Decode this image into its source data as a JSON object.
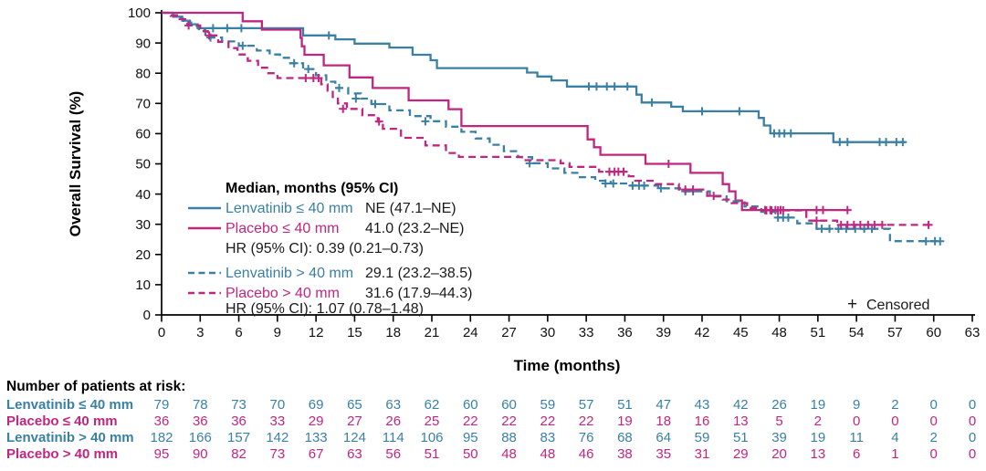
{
  "figure": {
    "censored_marker": "+",
    "censored_label": "Censored"
  },
  "chart_data": {
    "type": "line",
    "subtype": "kaplan-meier-step-survival",
    "title": "",
    "xlabel": "Time (months)",
    "ylabel": "Overall Survival (%)",
    "xlim": [
      0,
      63
    ],
    "ylim": [
      0,
      100
    ],
    "grid": false,
    "legend_position": "inside-left-bottom",
    "xticks": [
      0,
      3,
      6,
      9,
      12,
      15,
      18,
      21,
      24,
      27,
      30,
      33,
      36,
      39,
      42,
      45,
      48,
      51,
      54,
      57,
      60,
      63
    ],
    "yticks": [
      0,
      10,
      20,
      30,
      40,
      50,
      60,
      70,
      80,
      90,
      100
    ],
    "risk_table_title": "Number of patients at risk:",
    "legend": {
      "title": "Median, months (95% CI)",
      "hr_le40": "HR (95% CI): 0.39 (0.21–0.73)",
      "hr_gt40": "HR (95% CI): 1.07 (0.78–1.48)"
    },
    "series": [
      {
        "name": "Lenvatinib ≤ 40 mm",
        "color": "#3A80A5",
        "dash": "solid",
        "median": "NE (47.1–NE)",
        "points": [
          [
            0,
            100
          ],
          [
            0.9,
            98.7
          ],
          [
            1.6,
            97.4
          ],
          [
            2.2,
            96.2
          ],
          [
            2.8,
            94.9
          ],
          [
            11.0,
            92.5
          ],
          [
            13.5,
            91.2
          ],
          [
            15.0,
            89.8
          ],
          [
            17.7,
            88.5
          ],
          [
            19.5,
            86.1
          ],
          [
            20.9,
            84.3
          ],
          [
            21.4,
            81.7
          ],
          [
            28.4,
            80.2
          ],
          [
            29.2,
            78.9
          ],
          [
            30.3,
            77.6
          ],
          [
            31.5,
            75.6
          ],
          [
            36.9,
            72.9
          ],
          [
            37.3,
            70.3
          ],
          [
            39.6,
            68.9
          ],
          [
            40.5,
            67.4
          ],
          [
            46.4,
            65.2
          ],
          [
            46.8,
            62.7
          ],
          [
            47.3,
            60.1
          ],
          [
            52.2,
            57.2
          ],
          [
            57.8,
            57.2
          ]
        ],
        "censors": [
          [
            4.0,
            94.9
          ],
          [
            5.1,
            94.9
          ],
          [
            6.2,
            94.9
          ],
          [
            13.0,
            92.5
          ],
          [
            33.2,
            75.6
          ],
          [
            33.8,
            75.6
          ],
          [
            34.6,
            75.6
          ],
          [
            35.2,
            75.6
          ],
          [
            36.2,
            75.6
          ],
          [
            38.1,
            70.3
          ],
          [
            42.0,
            67.4
          ],
          [
            44.9,
            67.4
          ],
          [
            47.6,
            60.1
          ],
          [
            48.0,
            60.1
          ],
          [
            48.4,
            60.1
          ],
          [
            48.9,
            60.1
          ],
          [
            52.7,
            57.2
          ],
          [
            53.3,
            57.2
          ],
          [
            55.8,
            57.2
          ],
          [
            56.3,
            57.2
          ],
          [
            57.1,
            57.2
          ],
          [
            57.6,
            57.2
          ]
        ],
        "at_risk": [
          79,
          78,
          73,
          70,
          69,
          65,
          63,
          62,
          60,
          60,
          59,
          57,
          51,
          47,
          43,
          42,
          26,
          19,
          9,
          2,
          0,
          0
        ]
      },
      {
        "name": "Placebo ≤ 40 mm",
        "color": "#C0267F",
        "dash": "solid",
        "median": "41.0 (23.2–NE)",
        "points": [
          [
            0,
            100
          ],
          [
            6.3,
            97.2
          ],
          [
            7.8,
            94.4
          ],
          [
            10.8,
            91.7
          ],
          [
            10.9,
            88.9
          ],
          [
            11.1,
            86.1
          ],
          [
            12.6,
            82.6
          ],
          [
            14.6,
            78.6
          ],
          [
            16.4,
            75.1
          ],
          [
            19.2,
            71.0
          ],
          [
            22.3,
            68.1
          ],
          [
            23.3,
            62.5
          ],
          [
            33.1,
            58.1
          ],
          [
            33.6,
            55.5
          ],
          [
            34.1,
            53.0
          ],
          [
            37.6,
            50.0
          ],
          [
            41.1,
            47.0
          ],
          [
            43.6,
            43.3
          ],
          [
            44.1,
            40.9
          ],
          [
            44.6,
            37.9
          ],
          [
            45.1,
            34.7
          ],
          [
            53.4,
            34.7
          ]
        ],
        "censors": [
          [
            39.4,
            50.0
          ],
          [
            46.9,
            34.7
          ],
          [
            47.3,
            34.7
          ],
          [
            47.7,
            34.7
          ],
          [
            48.1,
            34.7
          ],
          [
            50.9,
            34.7
          ],
          [
            51.4,
            34.7
          ],
          [
            53.3,
            34.7
          ]
        ],
        "at_risk": [
          36,
          36,
          36,
          33,
          29,
          27,
          26,
          25,
          22,
          22,
          22,
          22,
          19,
          18,
          16,
          13,
          5,
          2,
          0,
          0,
          0,
          0
        ]
      },
      {
        "name": "Lenvatinib > 40 mm",
        "color": "#3A80A5",
        "dash": "dashed",
        "median": "29.1 (23.2–38.5)",
        "points": [
          [
            0,
            100
          ],
          [
            0.6,
            99.2
          ],
          [
            1.2,
            98.0
          ],
          [
            1.7,
            96.8
          ],
          [
            2.3,
            95.6
          ],
          [
            2.9,
            94.2
          ],
          [
            3.4,
            91.8
          ],
          [
            4.7,
            90.5
          ],
          [
            6.0,
            89.1
          ],
          [
            7.4,
            87.5
          ],
          [
            8.4,
            86.2
          ],
          [
            9.2,
            85.1
          ],
          [
            9.9,
            83.3
          ],
          [
            11.0,
            81.4
          ],
          [
            12.0,
            79.3
          ],
          [
            12.8,
            77.2
          ],
          [
            13.5,
            75.1
          ],
          [
            14.5,
            73.3
          ],
          [
            15.5,
            71.6
          ],
          [
            16.3,
            69.8
          ],
          [
            17.7,
            67.7
          ],
          [
            19.3,
            65.8
          ],
          [
            20.9,
            64.1
          ],
          [
            22.1,
            62.3
          ],
          [
            23.3,
            60.6
          ],
          [
            24.4,
            58.4
          ],
          [
            25.5,
            56.3
          ],
          [
            26.6,
            54.2
          ],
          [
            27.7,
            52.2
          ],
          [
            28.8,
            50.2
          ],
          [
            30.0,
            48.5
          ],
          [
            31.3,
            47.0
          ],
          [
            32.5,
            45.6
          ],
          [
            33.7,
            44.4
          ],
          [
            34.9,
            43.5
          ],
          [
            36.3,
            42.8
          ],
          [
            38.6,
            41.9
          ],
          [
            40.3,
            40.9
          ],
          [
            42.6,
            39.2
          ],
          [
            43.9,
            37.6
          ],
          [
            45.3,
            35.9
          ],
          [
            46.6,
            34.1
          ],
          [
            47.8,
            32.2
          ],
          [
            49.4,
            30.3
          ],
          [
            50.9,
            28.5
          ],
          [
            56.6,
            24.4
          ],
          [
            60.6,
            24.4
          ]
        ],
        "censors": [
          [
            3.8,
            91.8
          ],
          [
            6.3,
            89.1
          ],
          [
            10.3,
            83.3
          ],
          [
            11.4,
            81.4
          ],
          [
            13.8,
            75.1
          ],
          [
            15.1,
            71.6
          ],
          [
            16.6,
            69.8
          ],
          [
            20.5,
            64.1
          ],
          [
            28.6,
            50.2
          ],
          [
            34.5,
            43.5
          ],
          [
            35.1,
            43.5
          ],
          [
            36.6,
            42.8
          ],
          [
            37.1,
            42.8
          ],
          [
            37.5,
            42.8
          ],
          [
            38.8,
            41.9
          ],
          [
            40.7,
            40.9
          ],
          [
            41.3,
            40.9
          ],
          [
            47.9,
            32.2
          ],
          [
            48.3,
            32.2
          ],
          [
            48.7,
            32.2
          ],
          [
            51.3,
            28.5
          ],
          [
            51.9,
            28.5
          ],
          [
            52.6,
            28.5
          ],
          [
            53.2,
            28.5
          ],
          [
            53.9,
            28.5
          ],
          [
            54.6,
            28.5
          ],
          [
            55.2,
            28.5
          ],
          [
            59.4,
            24.4
          ],
          [
            60.1,
            24.4
          ],
          [
            60.5,
            24.4
          ]
        ],
        "at_risk": [
          182,
          166,
          157,
          142,
          133,
          124,
          114,
          106,
          95,
          88,
          83,
          76,
          68,
          64,
          59,
          51,
          39,
          19,
          11,
          4,
          2,
          0
        ]
      },
      {
        "name": "Placebo > 40 mm",
        "color": "#C0267F",
        "dash": "dashed",
        "median": "31.6 (17.9–44.3)",
        "points": [
          [
            0,
            100
          ],
          [
            0.7,
            99.0
          ],
          [
            1.4,
            97.9
          ],
          [
            2.0,
            95.8
          ],
          [
            3.0,
            93.9
          ],
          [
            3.6,
            92.5
          ],
          [
            4.4,
            90.4
          ],
          [
            5.2,
            88.3
          ],
          [
            5.9,
            86.2
          ],
          [
            6.7,
            84.1
          ],
          [
            7.5,
            81.8
          ],
          [
            8.2,
            80.0
          ],
          [
            9.0,
            78.4
          ],
          [
            12.4,
            76.3
          ],
          [
            12.9,
            74.2
          ],
          [
            13.3,
            72.1
          ],
          [
            13.7,
            70.0
          ],
          [
            14.4,
            68.2
          ],
          [
            15.6,
            66.1
          ],
          [
            16.8,
            64.0
          ],
          [
            17.2,
            61.6
          ],
          [
            18.6,
            58.6
          ],
          [
            20.5,
            56.1
          ],
          [
            22.1,
            53.6
          ],
          [
            23.1,
            52.3
          ],
          [
            28.0,
            51.2
          ],
          [
            31.0,
            50.2
          ],
          [
            31.7,
            49.0
          ],
          [
            34.0,
            47.4
          ],
          [
            36.3,
            45.9
          ],
          [
            36.8,
            44.4
          ],
          [
            38.4,
            43.3
          ],
          [
            40.2,
            41.5
          ],
          [
            42.4,
            39.4
          ],
          [
            43.6,
            38.2
          ],
          [
            44.3,
            37.0
          ],
          [
            45.5,
            35.4
          ],
          [
            46.6,
            34.6
          ],
          [
            50.1,
            31.2
          ],
          [
            52.5,
            29.8
          ],
          [
            59.7,
            29.8
          ]
        ],
        "censors": [
          [
            2.1,
            95.8
          ],
          [
            3.7,
            92.5
          ],
          [
            11.2,
            78.4
          ],
          [
            11.8,
            78.4
          ],
          [
            12.2,
            78.4
          ],
          [
            14.1,
            68.2
          ],
          [
            16.9,
            64.0
          ],
          [
            34.8,
            47.4
          ],
          [
            35.2,
            47.4
          ],
          [
            35.5,
            47.4
          ],
          [
            35.9,
            47.4
          ],
          [
            40.7,
            41.5
          ],
          [
            41.3,
            41.5
          ],
          [
            42.9,
            39.4
          ],
          [
            47.0,
            34.6
          ],
          [
            47.4,
            34.6
          ],
          [
            47.9,
            34.6
          ],
          [
            48.3,
            34.6
          ],
          [
            50.9,
            31.2
          ],
          [
            52.8,
            29.8
          ],
          [
            53.3,
            29.8
          ],
          [
            53.8,
            29.8
          ],
          [
            54.3,
            29.8
          ],
          [
            54.9,
            29.8
          ],
          [
            55.4,
            29.8
          ],
          [
            56.0,
            29.8
          ],
          [
            59.6,
            29.8
          ]
        ],
        "at_risk": [
          95,
          90,
          82,
          73,
          67,
          63,
          56,
          51,
          50,
          48,
          48,
          46,
          38,
          35,
          31,
          29,
          20,
          13,
          6,
          1,
          0,
          0
        ]
      }
    ]
  }
}
